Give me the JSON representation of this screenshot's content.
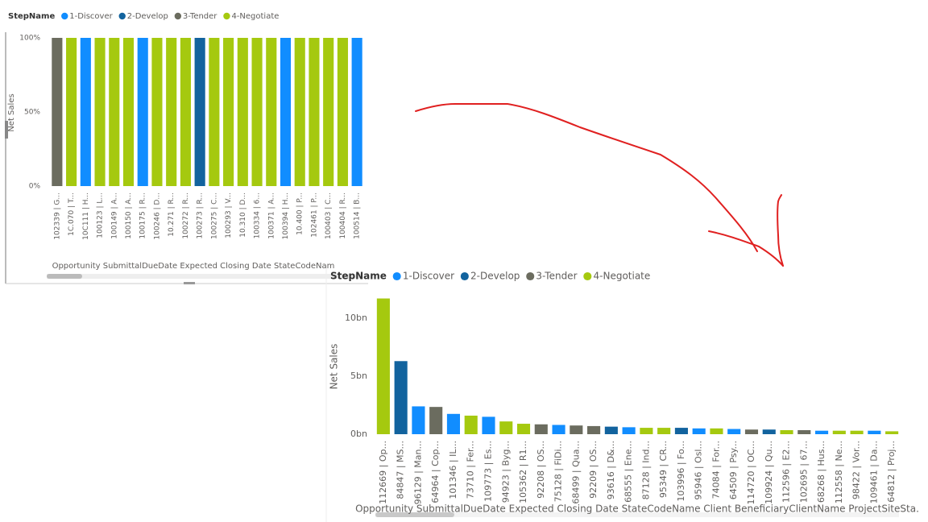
{
  "chart_data": [
    {
      "type": "bar",
      "stacked": "percent",
      "legend_title": "StepName",
      "y_label": "Net Sales",
      "x_label": "Opportunity SubmittalDueDate Expected Closing Date StateCodeNam",
      "categories": [
        "102339 | G...",
        "1C.070 | T...",
        "10C111 | H...",
        "100123 | L...",
        "100149 | A...",
        "100150 | A...",
        "100175 | R...",
        "100246 | D...",
        "10.271 | R...",
        "100272 | R...",
        "100273 | R...",
        "100275 | C...",
        "100293 | V...",
        "10.310 | D...",
        "100334 | 6...",
        "100371 | A...",
        "100394 | H...",
        "10.400 | P...",
        "102461 | P...",
        "100403 | C...",
        "100404 | R...",
        "100514 | B..."
      ],
      "series": [
        {
          "name": "1-Discover",
          "color": "#118dff",
          "values": [
            null,
            null,
            100,
            null,
            null,
            null,
            100,
            null,
            null,
            null,
            null,
            null,
            null,
            null,
            null,
            null,
            100,
            null,
            null,
            null,
            null,
            100
          ]
        },
        {
          "name": "2-Develop",
          "color": "#12639e",
          "values": [
            null,
            null,
            null,
            null,
            null,
            null,
            null,
            null,
            null,
            null,
            100,
            null,
            null,
            null,
            null,
            null,
            null,
            null,
            null,
            null,
            null,
            null
          ]
        },
        {
          "name": "3-Tender",
          "color": "#6b6c5f",
          "values": [
            100,
            null,
            null,
            null,
            null,
            null,
            null,
            null,
            null,
            null,
            null,
            null,
            null,
            null,
            null,
            null,
            null,
            null,
            null,
            null,
            null,
            null
          ]
        },
        {
          "name": "4-Negotiate",
          "color": "#a5c90f",
          "values": [
            null,
            100,
            null,
            100,
            100,
            100,
            null,
            100,
            100,
            100,
            null,
            100,
            100,
            100,
            100,
            100,
            null,
            100,
            100,
            100,
            100,
            null
          ]
        }
      ],
      "ylim": [
        0,
        100
      ],
      "yticks": [
        {
          "value": 0,
          "label": "0%"
        },
        {
          "value": 50,
          "label": "50%"
        },
        {
          "value": 100,
          "label": "100%"
        }
      ]
    },
    {
      "type": "bar",
      "legend_title": "StepName",
      "y_label": "Net Sales",
      "x_label": "Opportunity SubmittalDueDate Expected Closing Date StateCodeName Client BeneficiaryClientName ProjectSiteSta.",
      "categories": [
        "112669 | Op...",
        "84847 | MS...",
        "96129 | Man...",
        "64964 | Cop...",
        "101346 | IL...",
        "73710 | Fer...",
        "109773 | Es...",
        "94923 | Byg...",
        "105362 | R1...",
        "92208 | OS...",
        "75128 | FiDi...",
        "68499 | Qua...",
        "92209 | OS...",
        "93616 | D&...",
        "68555 | Ene...",
        "87128 | Ind...",
        "95349 | CR...",
        "103996 | Fo...",
        "95946 | Osl...",
        "74084 | For...",
        "64509 | Psy...",
        "114720 | OC...",
        "109924 | Qu...",
        "112596 | E2...",
        "102695 | 67...",
        "68268 | Hus...",
        "112558 | Ne...",
        "98422 | Vor...",
        "109461 | Da...",
        "64812 | Proj..."
      ],
      "series": [
        {
          "name": "1-Discover",
          "color": "#118dff",
          "values": [
            null,
            null,
            2.4,
            null,
            1.75,
            null,
            1.5,
            null,
            null,
            null,
            0.8,
            null,
            null,
            null,
            0.6,
            null,
            null,
            null,
            0.5,
            null,
            0.45,
            null,
            null,
            null,
            null,
            0.3,
            null,
            null,
            0.3,
            null
          ]
        },
        {
          "name": "2-Develop",
          "color": "#12639e",
          "values": [
            null,
            6.3,
            null,
            null,
            null,
            null,
            null,
            null,
            null,
            null,
            null,
            null,
            null,
            0.65,
            null,
            null,
            null,
            0.55,
            null,
            null,
            null,
            null,
            0.4,
            null,
            null,
            null,
            null,
            null,
            null,
            null
          ]
        },
        {
          "name": "3-Tender",
          "color": "#6b6c5f",
          "values": [
            null,
            null,
            null,
            2.35,
            null,
            null,
            null,
            null,
            null,
            0.85,
            null,
            0.75,
            0.7,
            null,
            null,
            null,
            null,
            null,
            null,
            null,
            null,
            0.4,
            null,
            null,
            0.35,
            null,
            null,
            null,
            null,
            null
          ]
        },
        {
          "name": "4-Negotiate",
          "color": "#a5c90f",
          "values": [
            11.7,
            null,
            null,
            null,
            null,
            1.6,
            null,
            1.1,
            0.9,
            null,
            null,
            null,
            null,
            null,
            null,
            0.55,
            0.55,
            null,
            null,
            0.5,
            null,
            null,
            null,
            0.35,
            null,
            null,
            0.3,
            0.3,
            null,
            0.25
          ]
        }
      ],
      "ylim": [
        0,
        12.5
      ],
      "yticks": [
        {
          "value": 0,
          "label": "0bn"
        },
        {
          "value": 5,
          "label": "5bn"
        },
        {
          "value": 10,
          "label": "10bn"
        }
      ]
    }
  ]
}
